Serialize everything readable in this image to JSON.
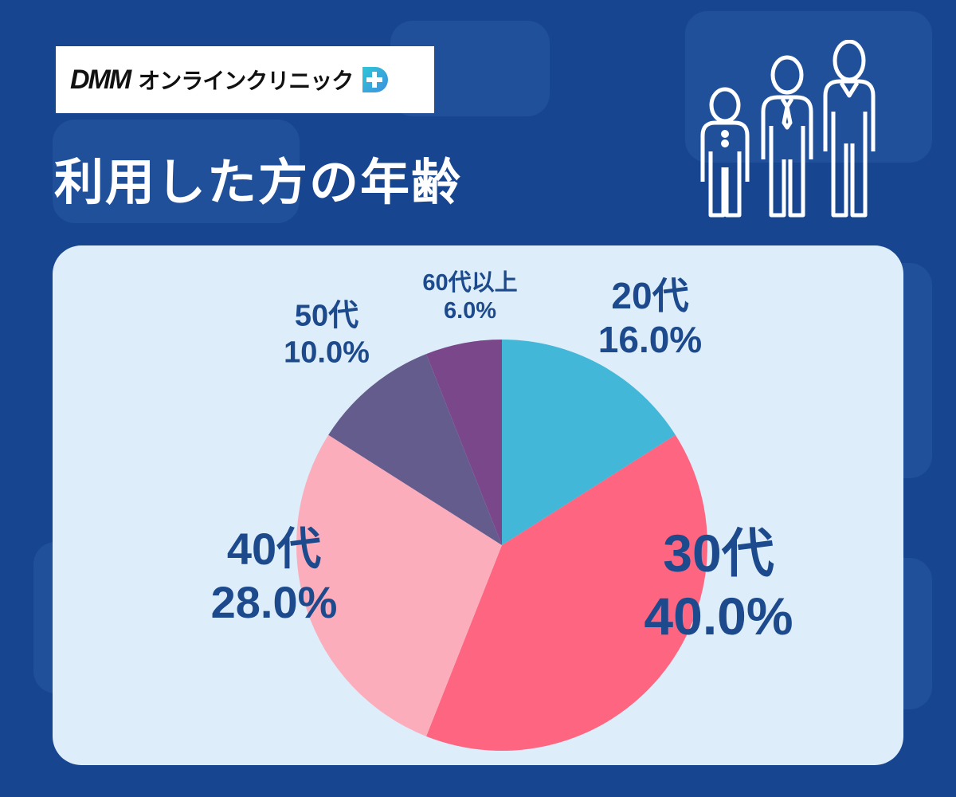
{
  "logo": {
    "brand": "DMM",
    "service": "オンラインクリニック"
  },
  "title": "利用した方の年齢",
  "icons": {
    "people": "people-group-icon",
    "logo_mark": "medical-cross-icon"
  },
  "colors": {
    "background": "#17458f",
    "panel": "#ddedf9",
    "label": "#1c4a8c",
    "20代": "#42b7d8",
    "30代": "#fd6580",
    "40代": "#fcadbb",
    "50代": "#655c8e",
    "60代以上": "#7a478a"
  },
  "chart_data": {
    "type": "pie",
    "title": "利用した方の年齢",
    "categories": [
      "20代",
      "30代",
      "40代",
      "50代",
      "60代以上"
    ],
    "values": [
      16.0,
      40.0,
      28.0,
      10.0,
      6.0
    ],
    "labels": [
      {
        "category": "20代",
        "percent": "16.0%"
      },
      {
        "category": "30代",
        "percent": "40.0%"
      },
      {
        "category": "40代",
        "percent": "28.0%"
      },
      {
        "category": "50代",
        "percent": "10.0%"
      },
      {
        "category": "60代以上",
        "percent": "6.0%"
      }
    ],
    "start": "12 o'clock",
    "direction": "clockwise"
  }
}
